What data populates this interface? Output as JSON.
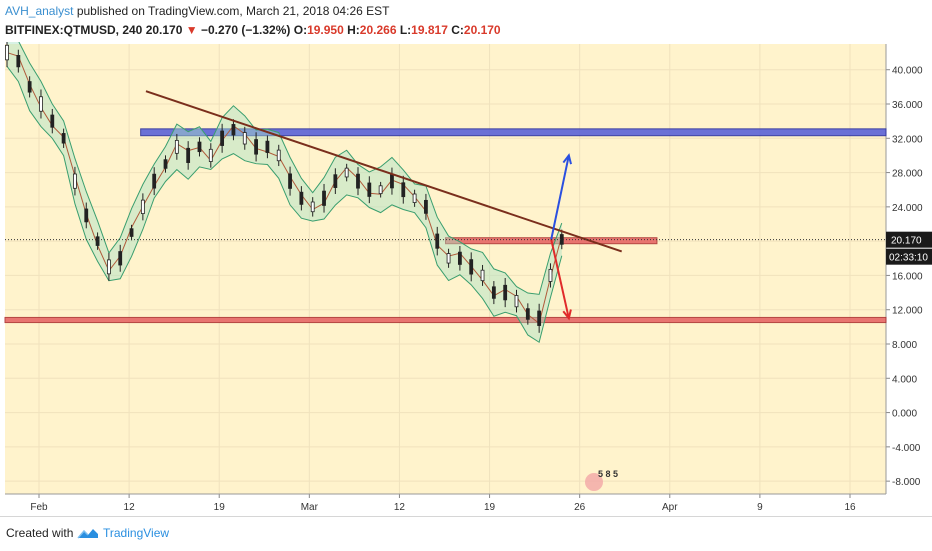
{
  "header": {
    "author": "AVH_analyst",
    "published": " published on TradingView.com, March 21, 2018 04:26 EST",
    "symbol": "BITFINEX:QTMUSD, 240",
    "last": "20.170",
    "change": "−0.270 (−1.32%)",
    "open_label": "O:",
    "open": "19.950",
    "high_label": "H:",
    "high": "20.266",
    "low_label": "L:",
    "low": "19.817",
    "close_label": "C:",
    "close": "20.170"
  },
  "footer": {
    "created": "Created with",
    "brand": "TradingView"
  },
  "chart_data": {
    "type": "line",
    "x_labels": [
      "Feb",
      "12",
      "19",
      "Mar",
      "12",
      "19",
      "26",
      "Apr",
      "9",
      "16"
    ],
    "y_ticks": [
      "40.000",
      "36.000",
      "32.000",
      "28.000",
      "24.000",
      "20.000",
      "16.000",
      "12.000",
      "8.000",
      "4.000",
      "0.000",
      "-4.000",
      "-8.000"
    ],
    "ylim": [
      -9.5,
      43
    ],
    "price_label": "20.170",
    "countdown": "02:33:10",
    "series": [
      {
        "values": [
          42,
          41,
          38,
          36,
          34,
          32,
          27,
          23,
          20,
          17,
          18,
          21,
          24,
          27,
          29,
          31,
          30,
          31,
          30,
          32,
          33,
          32,
          31,
          31,
          30,
          27,
          25,
          24,
          25,
          27,
          28,
          27,
          26,
          26,
          27,
          26,
          25,
          24,
          20,
          18,
          18,
          17,
          16,
          14,
          14,
          13,
          11.5,
          11,
          16,
          20.2
        ]
      }
    ],
    "resistance_zone": [
      32.3,
      33.1
    ],
    "support_zone": [
      10.5,
      11.1
    ],
    "mid_zone": [
      19.7,
      20.4
    ],
    "trendline": [
      [
        0.16,
        37.5
      ],
      [
        0.7,
        18.8
      ]
    ],
    "arrow_up": [
      [
        0.62,
        20.2
      ],
      [
        0.64,
        30
      ]
    ],
    "arrow_down": [
      [
        0.62,
        20.2
      ],
      [
        0.64,
        11
      ]
    ],
    "colors": {
      "bg": "#fff3cc",
      "resistance": "#5a62d8",
      "support": "#e56060",
      "trend": "#7a2e1c",
      "band": "#a8e3c6",
      "price": "#222222"
    }
  }
}
